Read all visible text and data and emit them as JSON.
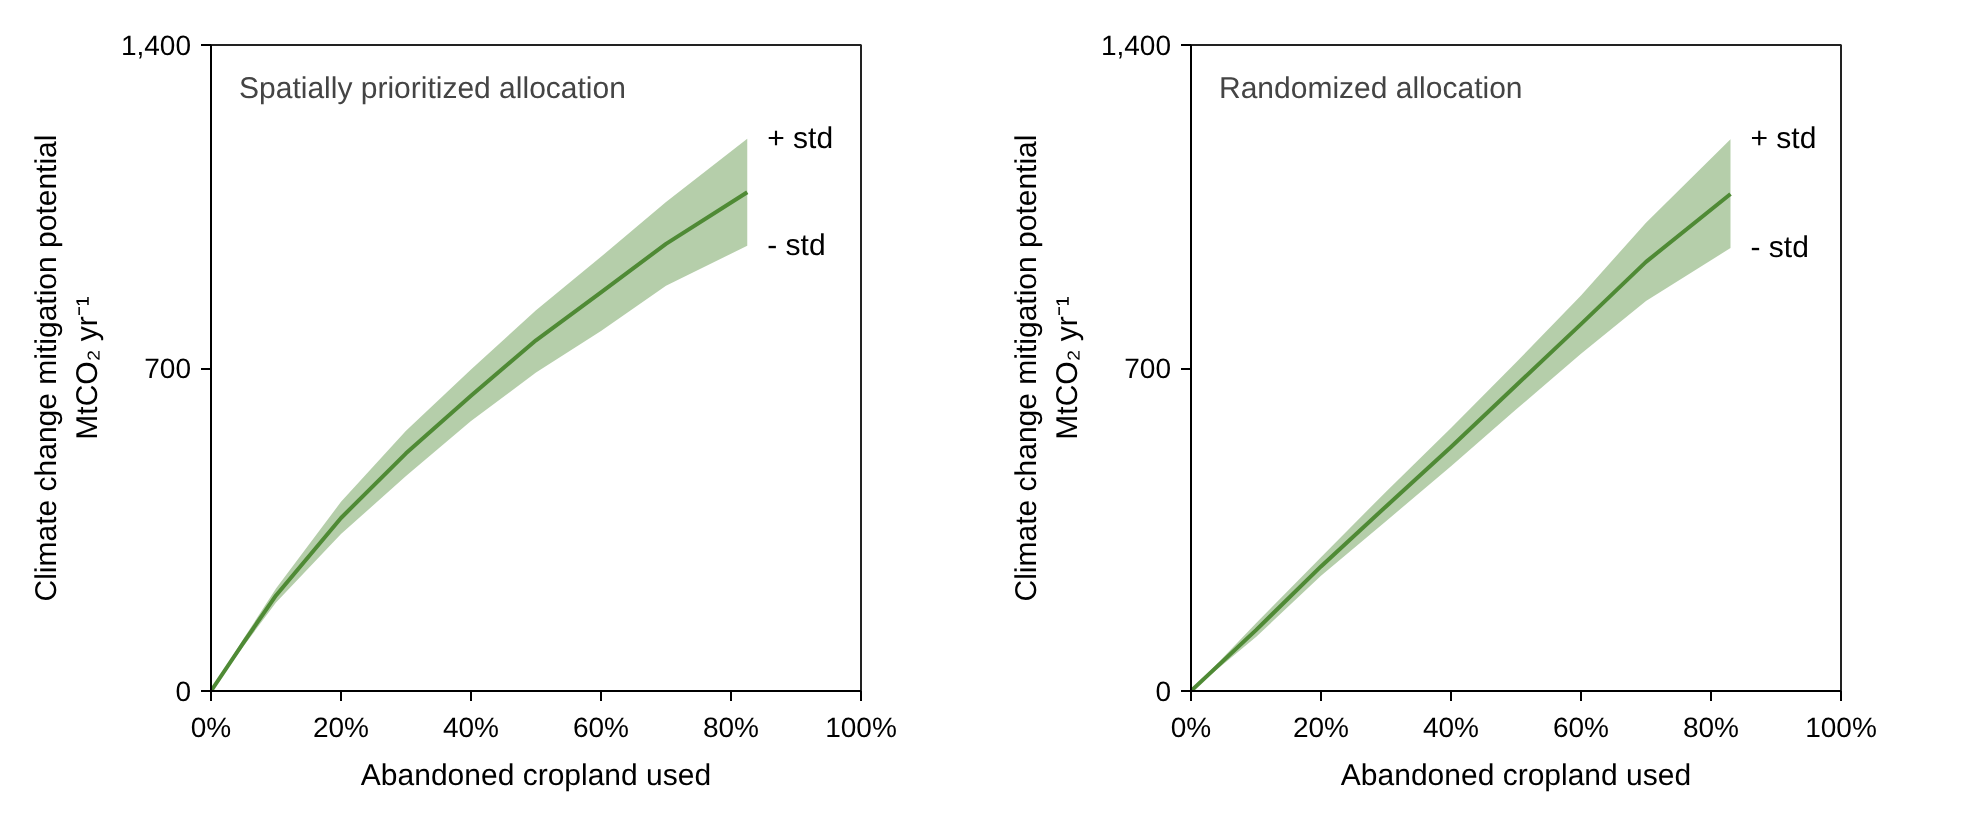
{
  "chart_data": [
    {
      "type": "line",
      "title": "Spatially prioritized allocation",
      "xlabel": "Abandoned cropland used",
      "ylabel": "Climate change mitigation potential\nMtCO₂ yr⁻¹",
      "x": [
        0,
        5,
        10,
        20,
        30,
        40,
        50,
        60,
        70,
        82.5
      ],
      "series": [
        {
          "color": "#4f8a35",
          "values": [
            0,
            105,
            207,
            375,
            515,
            640,
            760,
            864,
            969,
            1081
          ],
          "lower": [
            0,
            97,
            192,
            340,
            466,
            585,
            690,
            780,
            878,
            965
          ],
          "upper": [
            0,
            113,
            222,
            410,
            564,
            697,
            825,
            941,
            1060,
            1197
          ]
        }
      ],
      "xlim": [
        0,
        100
      ],
      "ylim": [
        0,
        1400
      ],
      "xticks": [
        {
          "value": 0,
          "label": "0%"
        },
        {
          "value": 20,
          "label": "20%"
        },
        {
          "value": 40,
          "label": "40%"
        },
        {
          "value": 60,
          "label": "60%"
        },
        {
          "value": 80,
          "label": "80%"
        },
        {
          "value": 100,
          "label": "100%"
        }
      ],
      "yticks": [
        0,
        700,
        {
          "value": 1400,
          "label": "1,400"
        }
      ],
      "annotations": [
        "+ std",
        "- std"
      ],
      "grid": false,
      "line_style": "solid"
    },
    {
      "type": "line",
      "title": "Randomized allocation",
      "xlabel": "Abandoned cropland used",
      "ylabel": "Climate change mitigation potential\nMtCO₂ yr⁻¹",
      "x": [
        0,
        10,
        20,
        30,
        40,
        50,
        60,
        70,
        83
      ],
      "series": [
        {
          "color": "#4f8a35",
          "values": [
            0,
            132,
            270,
            400,
            529,
            662,
            795,
            930,
            1077
          ],
          "lower": [
            0,
            117,
            250,
            368,
            487,
            610,
            731,
            845,
            960
          ],
          "upper": [
            0,
            147,
            290,
            432,
            570,
            712,
            857,
            1015,
            1196
          ]
        }
      ],
      "xlim": [
        0,
        100
      ],
      "ylim": [
        0,
        1400
      ],
      "xticks": [
        {
          "value": 0,
          "label": "0%"
        },
        {
          "value": 20,
          "label": "20%"
        },
        {
          "value": 40,
          "label": "40%"
        },
        {
          "value": 60,
          "label": "60%"
        },
        {
          "value": 80,
          "label": "80%"
        },
        {
          "value": 100,
          "label": "100%"
        }
      ],
      "yticks": [
        0,
        700,
        {
          "value": 1400,
          "label": "1,400"
        }
      ],
      "annotations": [
        "+ std",
        "- std"
      ],
      "grid": false,
      "line_style": "solid"
    }
  ]
}
